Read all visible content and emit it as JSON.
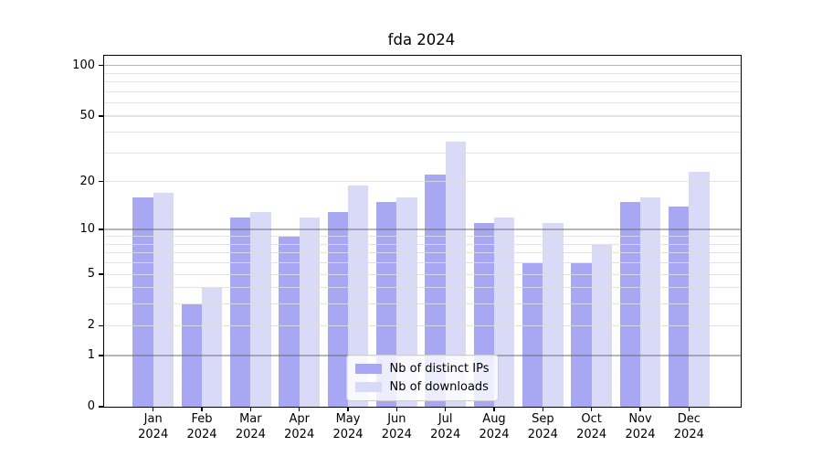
{
  "chart_data": {
    "type": "bar",
    "title": "fda 2024",
    "categories": [
      "Jan 2024",
      "Feb 2024",
      "Mar 2024",
      "Apr 2024",
      "May 2024",
      "Jun 2024",
      "Jul 2024",
      "Aug 2024",
      "Sep 2024",
      "Oct 2024",
      "Nov 2024",
      "Dec 2024"
    ],
    "series": [
      {
        "name": "Nb of distinct IPs",
        "color": "#a7a7f3",
        "values": [
          16,
          3,
          12,
          9,
          13,
          15,
          22,
          11,
          6,
          6,
          15,
          14
        ]
      },
      {
        "name": "Nb of downloads",
        "color": "#d9d9f8",
        "values": [
          17,
          4,
          13,
          12,
          19,
          16,
          35,
          12,
          11,
          8,
          16,
          23
        ]
      }
    ],
    "xlabel": "",
    "ylabel": "",
    "yscale": "log1p",
    "ylim": [
      0,
      115
    ],
    "ytick_values": [
      0,
      1,
      2,
      5,
      10,
      20,
      50,
      100
    ],
    "ytick_labels": [
      "0",
      "1",
      "2",
      "5",
      "10",
      "20",
      "50",
      "100"
    ],
    "major_grid_values": [
      1,
      10,
      100
    ],
    "minor_grid_values": [
      2,
      3,
      4,
      5,
      6,
      7,
      8,
      9,
      20,
      30,
      40,
      50,
      60,
      70,
      80,
      90
    ],
    "grid": true,
    "legend_position": "lower center"
  }
}
